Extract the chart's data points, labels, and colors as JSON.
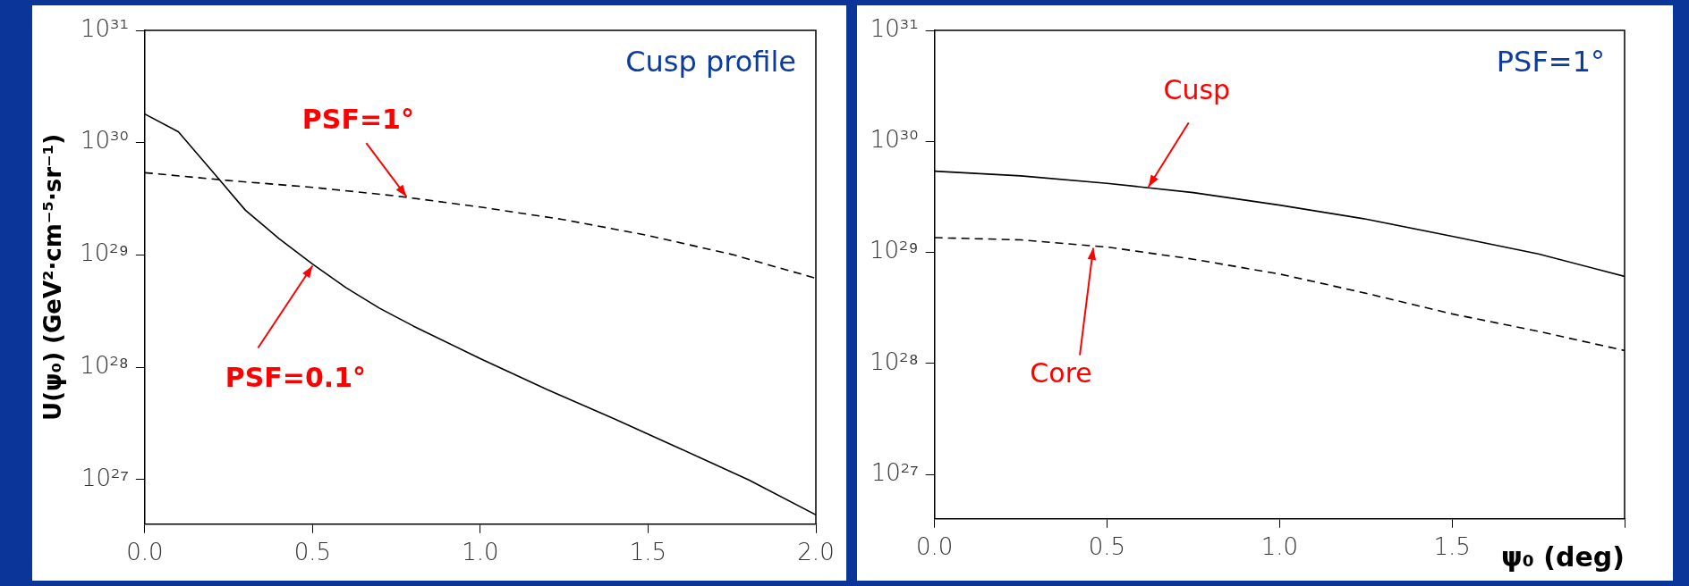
{
  "chart_data": [
    {
      "type": "line",
      "title": "Cusp profile",
      "ylabel": "U(ψ₀) (GeV²·cm⁻⁵·sr⁻¹)",
      "log": "y",
      "grid": false,
      "legend": false,
      "x": [
        0,
        0.25,
        0.5,
        0.75,
        1.0,
        1.25,
        1.5,
        1.75,
        2.0
      ],
      "series": [
        {
          "color": "#000000",
          "line_style": "solid",
          "x": [
            0,
            0.1,
            0.2,
            0.3,
            0.4,
            0.5,
            0.6,
            0.7,
            0.8,
            1.0,
            1.2,
            1.4,
            1.6,
            1.8,
            2.0
          ],
          "values": [
            1.8e+30,
            1.25e+30,
            5.6e+29,
            2.5e+29,
            1.4e+29,
            8.3e+28,
            5.1e+28,
            3.35e+28,
            2.33e+28,
            1.19e+28,
            6.3e+27,
            3.46e+27,
            1.86e+27,
            9.9e+26,
            4.85e+26
          ]
        },
        {
          "color": "#000000",
          "line_style": "dashed",
          "values": [
            5.4e+29,
            4.6e+29,
            4e+29,
            3.35e+29,
            2.67e+29,
            2.06e+29,
            1.49e+29,
            1.01e+29,
            6.2e+28
          ]
        }
      ],
      "xlim": [
        0,
        2
      ],
      "xticks": [
        {
          "value": 0,
          "label": "0.0"
        },
        {
          "value": 0.5,
          "label": "0.5"
        },
        {
          "value": 1,
          "label": "1.0"
        },
        {
          "value": 1.5,
          "label": "1.5"
        },
        {
          "value": 2,
          "label": "2.0"
        }
      ],
      "ylim": [
        4e+26,
        1e+31
      ],
      "yticks": [
        {
          "value": 1e+27,
          "label": "10²⁷"
        },
        {
          "value": 1e+28,
          "label": "10²⁸"
        },
        {
          "value": 1e+29,
          "label": "10²⁹"
        },
        {
          "value": 1e+30,
          "label": "10³⁰"
        },
        {
          "value": 1e+31,
          "label": "10³¹"
        }
      ],
      "annotations": [
        {
          "text": "PSF=1°",
          "x": 0.78,
          "y": 3.3e+29
        },
        {
          "text": "PSF=0.1°",
          "x": 0.5,
          "y": 8e+28
        }
      ]
    },
    {
      "type": "line",
      "title": "PSF=1°",
      "xlabel": "ψ₀ (deg)",
      "log": "y",
      "grid": false,
      "legend": false,
      "x": [
        0,
        0.25,
        0.5,
        0.75,
        1.0,
        1.25,
        1.5,
        1.75,
        2.0
      ],
      "series": [
        {
          "color": "#000000",
          "line_style": "solid",
          "values": [
            5.4e+29,
            4.9e+29,
            4.2e+29,
            3.46e+29,
            2.67e+29,
            2e+29,
            1.4e+29,
            9.7e+28,
            6.1e+28
          ]
        },
        {
          "color": "#000000",
          "line_style": "dashed",
          "values": [
            1.36e+29,
            1.3e+29,
            1.12e+29,
            8.7e+28,
            6.4e+28,
            4.3e+28,
            2.8e+28,
            1.95e+28,
            1.31e+28
          ]
        }
      ],
      "xlim": [
        0,
        2
      ],
      "xticks": [
        {
          "value": 0,
          "label": "0.0"
        },
        {
          "value": 0.5,
          "label": "0.5"
        },
        {
          "value": 1,
          "label": "1.0"
        },
        {
          "value": 1.5,
          "label": "1.5"
        },
        {
          "value": 2,
          "label": null
        }
      ],
      "ylim": [
        4e+26,
        1e+31
      ],
      "yticks": [
        {
          "value": 1e+27,
          "label": "10²⁷"
        },
        {
          "value": 1e+28,
          "label": "10²⁸"
        },
        {
          "value": 1e+29,
          "label": "10²⁹"
        },
        {
          "value": 1e+30,
          "label": "10³⁰"
        },
        {
          "value": 1e+31,
          "label": "10³¹"
        }
      ],
      "annotations": [
        {
          "text": "Cusp",
          "x": 0.62,
          "y": 3.9e+29
        },
        {
          "text": "Core",
          "x": 0.46,
          "y": 1.1e+29
        }
      ]
    }
  ]
}
